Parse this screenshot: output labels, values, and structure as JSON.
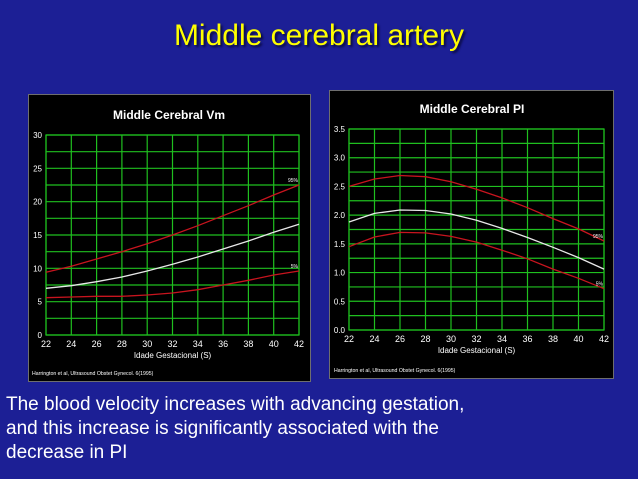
{
  "slide": {
    "title": "Middle cerebral artery",
    "caption_lines": [
      "The blood velocity increases with advancing gestation,",
      "and this increase is significantly associated with the",
      "decrease in PI"
    ]
  },
  "colors": {
    "background": "#1c1f95",
    "title": "#ffff00",
    "grid": "#1fbf1f",
    "percentile_curve": "#c8141e",
    "median_curve": "#e8e8e8",
    "plot_text": "#ffffff"
  },
  "chart_data": [
    {
      "type": "line",
      "title": "Middle Cerebral Vm",
      "xlabel": "Idade Gestacional (S)",
      "ylabel": "",
      "x": [
        22,
        24,
        26,
        28,
        30,
        32,
        34,
        36,
        38,
        40,
        42
      ],
      "xlim": [
        22,
        42
      ],
      "ylim": [
        0,
        30
      ],
      "yticks": [
        "0",
        "5",
        "10",
        "15",
        "20",
        "25",
        "30"
      ],
      "grid": true,
      "source": "Harrington et al, Ultrasound Obstet Gynecol. 6(1995)",
      "series": [
        {
          "name": "95%",
          "role": "percentile",
          "values": [
            9.4,
            10.3,
            11.4,
            12.5,
            13.7,
            15.0,
            16.4,
            17.9,
            19.4,
            21.0,
            22.5
          ]
        },
        {
          "name": "",
          "role": "median",
          "values": [
            7.0,
            7.4,
            8.0,
            8.7,
            9.6,
            10.6,
            11.7,
            12.9,
            14.1,
            15.4,
            16.6
          ]
        },
        {
          "name": "5%",
          "role": "percentile",
          "values": [
            5.6,
            5.7,
            5.8,
            5.8,
            6.0,
            6.3,
            6.8,
            7.5,
            8.2,
            9.0,
            9.6
          ]
        }
      ]
    },
    {
      "type": "line",
      "title": "Middle Cerebral PI",
      "xlabel": "Idade Gestacional (S)",
      "ylabel": "",
      "x": [
        22,
        24,
        26,
        28,
        30,
        32,
        34,
        36,
        38,
        40,
        42
      ],
      "xlim": [
        22,
        42
      ],
      "ylim": [
        0,
        3.5
      ],
      "yticks": [
        "0.0",
        "0.5",
        "1.0",
        "1.5",
        "2.0",
        "2.5",
        "3.0",
        "3.5"
      ],
      "grid": true,
      "source": "Harrington et al, Ultrasound Obstet Gynecol. 6(1995)",
      "series": [
        {
          "name": "95%",
          "role": "percentile",
          "values": [
            2.5,
            2.63,
            2.69,
            2.67,
            2.58,
            2.45,
            2.3,
            2.13,
            1.94,
            1.76,
            1.55
          ]
        },
        {
          "name": "",
          "role": "median",
          "values": [
            1.88,
            2.03,
            2.09,
            2.08,
            2.02,
            1.91,
            1.77,
            1.61,
            1.44,
            1.26,
            1.06
          ]
        },
        {
          "name": "5%",
          "role": "percentile",
          "values": [
            1.45,
            1.62,
            1.7,
            1.69,
            1.63,
            1.53,
            1.39,
            1.24,
            1.06,
            0.9,
            0.72
          ]
        }
      ]
    }
  ]
}
